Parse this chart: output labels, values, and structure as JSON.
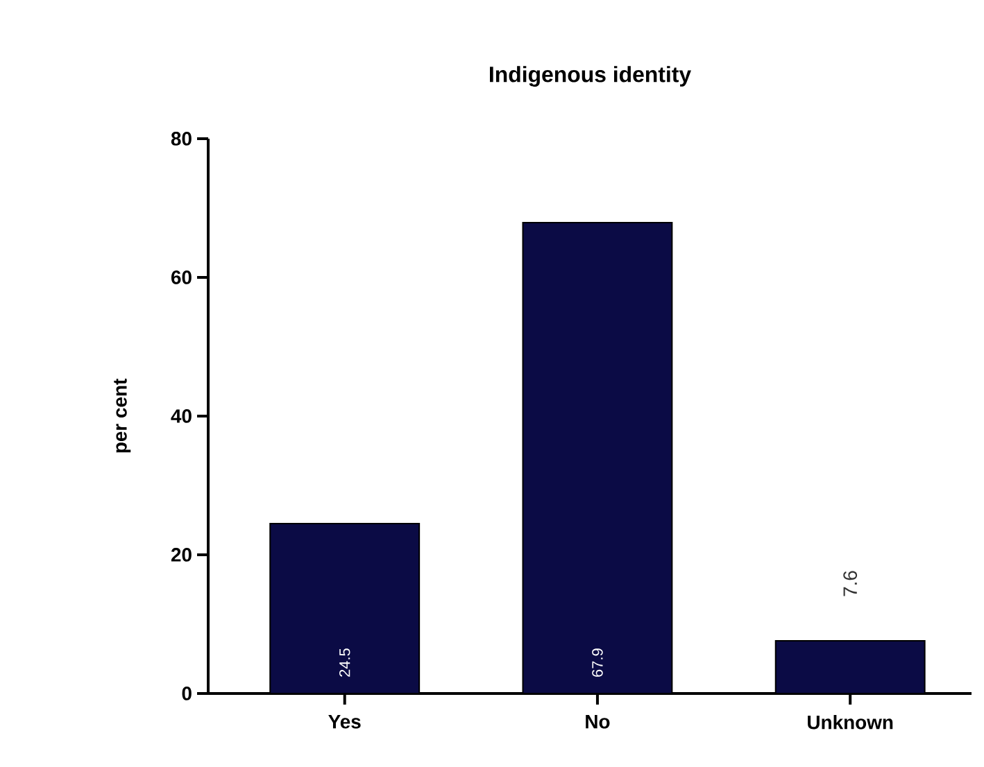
{
  "chart_data": {
    "type": "bar",
    "title": "Indigenous identity",
    "ylabel": "per cent",
    "categories": [
      "Yes",
      "No",
      "Unknown"
    ],
    "values": [
      24.5,
      67.9,
      7.6
    ],
    "color": "#0b0b45",
    "ylim": [
      0,
      80
    ],
    "yticks": [
      0,
      20,
      40,
      60,
      80
    ],
    "data_labels": true,
    "grid": false
  }
}
